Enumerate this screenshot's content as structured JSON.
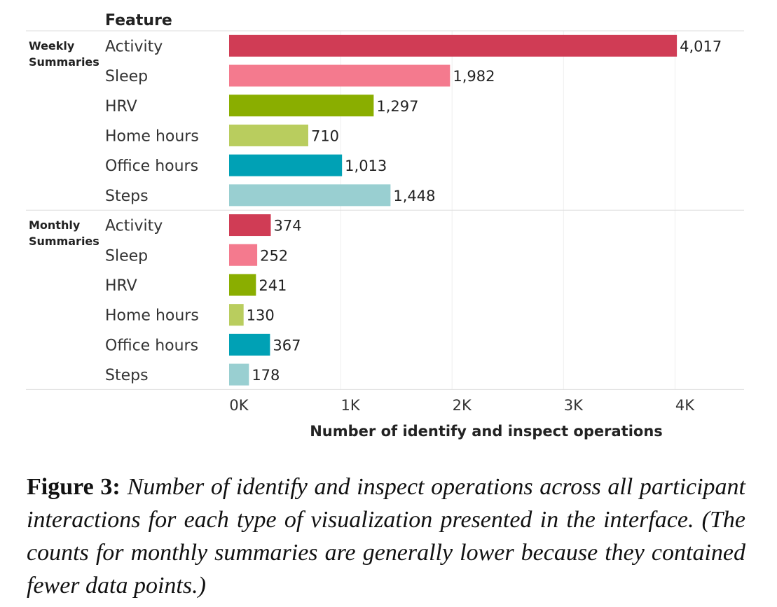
{
  "chart_data": {
    "type": "bar",
    "orientation": "horizontal",
    "row_header": "Feature",
    "groups": [
      {
        "name": "Weekly Summaries",
        "name_lines": [
          "Weekly",
          "Summaries"
        ],
        "bars": [
          {
            "category": "Activity",
            "value": 4017,
            "label": "4,017",
            "color": "#d03c55"
          },
          {
            "category": "Sleep",
            "value": 1982,
            "label": "1,982",
            "color": "#f47a8e"
          },
          {
            "category": "HRV",
            "value": 1297,
            "label": "1,297",
            "color": "#8aae00"
          },
          {
            "category": "Home hours",
            "value": 710,
            "label": "710",
            "color": "#b9cd5e"
          },
          {
            "category": "Office hours",
            "value": 1013,
            "label": "1,013",
            "color": "#00a1b5"
          },
          {
            "category": "Steps",
            "value": 1448,
            "label": "1,448",
            "color": "#99cfd1"
          }
        ]
      },
      {
        "name": "Monthly Summaries",
        "name_lines": [
          "Monthly",
          "Summaries"
        ],
        "bars": [
          {
            "category": "Activity",
            "value": 374,
            "label": "374",
            "color": "#d03c55"
          },
          {
            "category": "Sleep",
            "value": 252,
            "label": "252",
            "color": "#f47a8e"
          },
          {
            "category": "HRV",
            "value": 241,
            "label": "241",
            "color": "#8aae00"
          },
          {
            "category": "Home hours",
            "value": 130,
            "label": "130",
            "color": "#b9cd5e"
          },
          {
            "category": "Office hours",
            "value": 367,
            "label": "367",
            "color": "#00a1b5"
          },
          {
            "category": "Steps",
            "value": 178,
            "label": "178",
            "color": "#99cfd1"
          }
        ]
      }
    ],
    "xlabel": "Number of identify and inspect operations",
    "xlim": [
      0,
      4500
    ],
    "xticks": [
      0,
      1000,
      2000,
      3000,
      4000
    ],
    "xtick_labels": [
      "0K",
      "1K",
      "2K",
      "3K",
      "4K"
    ],
    "grid": true,
    "legend": "none"
  },
  "caption": {
    "label": "Figure 3:",
    "text": "Number of identify and inspect operations across all participant interactions for each type of visualization presented in the interface. (The counts for monthly summaries are generally lower because they contained fewer data points.)"
  }
}
